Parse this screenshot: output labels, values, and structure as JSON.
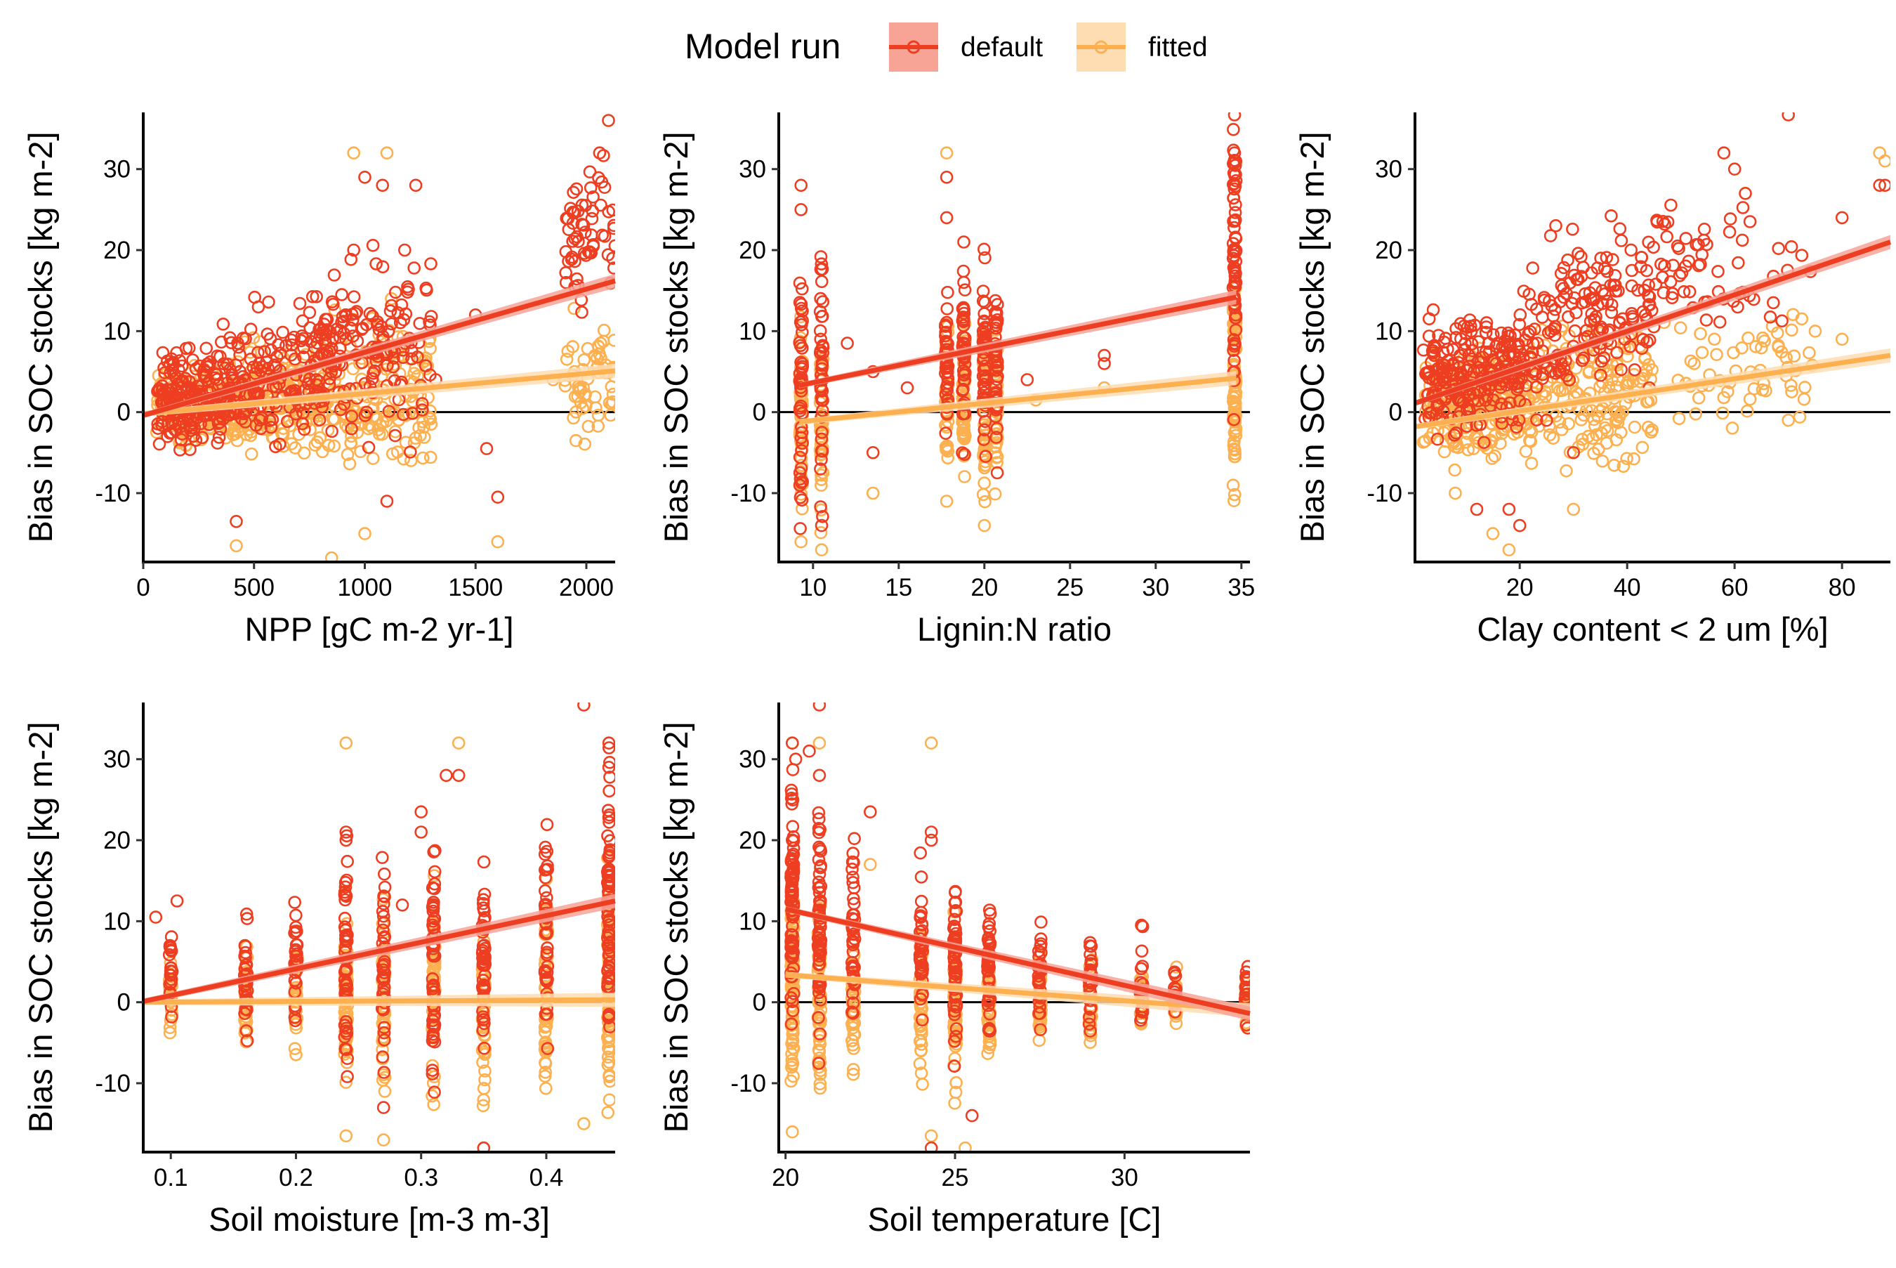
{
  "legend": {
    "title": "Model run",
    "entries": [
      {
        "label": "default",
        "color": "#EE3E22",
        "fill": "#F7A396"
      },
      {
        "label": "fitted",
        "color": "#FDB050",
        "fill": "#FEDDB3"
      }
    ]
  },
  "chart_data": [
    {
      "type": "scatter",
      "xlabel": "NPP [gC m-2 yr-1]",
      "ylabel": "Bias in SOC stocks [kg m-2]",
      "xlim": [
        0,
        2130
      ],
      "ylim": [
        -18.5,
        37
      ],
      "xticks": [
        0,
        500,
        1000,
        1500,
        2000
      ],
      "yticks": [
        -10,
        0,
        10,
        20,
        30
      ],
      "hline": 0,
      "series": [
        {
          "name": "default",
          "trend": [
            [
              0,
              -0.4
            ],
            [
              2130,
              16.2
            ]
          ],
          "clusters": [
            [
              60,
              450,
              0.8,
              4,
              2.8,
              220
            ],
            [
              450,
              850,
              3.5,
              6,
              4.0,
              160
            ],
            [
              850,
              1300,
              6.5,
              9.5,
              5.0,
              130
            ],
            [
              1900,
              2130,
              19,
              23,
              4.5,
              60
            ]
          ],
          "points": [
            [
              420,
              -13.5
            ],
            [
              950,
              20
            ],
            [
              1000,
              29
            ],
            [
              1080,
              28
            ],
            [
              1180,
              20
            ],
            [
              1230,
              28
            ],
            [
              1500,
              12
            ],
            [
              1550,
              -4.5
            ],
            [
              1600,
              -10.5
            ],
            [
              2100,
              36
            ],
            [
              2060,
              32
            ],
            [
              1100,
              -11
            ],
            [
              1320,
              4
            ]
          ]
        },
        {
          "name": "fitted",
          "trend": [
            [
              0,
              -0.2
            ],
            [
              2130,
              5.1
            ]
          ],
          "clusters": [
            [
              60,
              450,
              0.6,
              1.2,
              2.2,
              220
            ],
            [
              450,
              850,
              1.5,
              1.8,
              3.0,
              170
            ],
            [
              850,
              1300,
              1.9,
              2.1,
              4.5,
              150
            ],
            [
              1900,
              2130,
              4.0,
              5.0,
              3.5,
              60
            ]
          ],
          "points": [
            [
              420,
              -16.5
            ],
            [
              950,
              32
            ],
            [
              1100,
              32
            ],
            [
              850,
              -18
            ],
            [
              1000,
              -15
            ],
            [
              1600,
              -16
            ],
            [
              1120,
              14
            ],
            [
              1850,
              4
            ]
          ]
        }
      ]
    },
    {
      "type": "scatter",
      "xlabel": "Lignin:N ratio",
      "ylabel": "Bias in SOC stocks [kg m-2]",
      "xlim": [
        8,
        35.5
      ],
      "ylim": [
        -18.5,
        37
      ],
      "xticks": [
        10,
        15,
        20,
        25,
        30,
        35
      ],
      "yticks": [
        -10,
        0,
        10,
        20,
        30
      ],
      "hline": 0,
      "series": [
        {
          "name": "default",
          "trend": [
            [
              9.2,
              3.3
            ],
            [
              34.7,
              14.2
            ]
          ],
          "columns": [
            [
              9.3,
              2.5,
              7,
              45
            ],
            [
              10.5,
              3.0,
              7,
              40
            ],
            [
              17.8,
              6.0,
              5,
              40
            ],
            [
              18.8,
              7.0,
              5,
              40
            ],
            [
              20.0,
              6.5,
              5,
              45
            ],
            [
              20.7,
              6.0,
              5,
              40
            ],
            [
              34.6,
              17,
              8,
              70
            ]
          ],
          "points": [
            [
              9.3,
              28
            ],
            [
              9.3,
              25
            ],
            [
              10.5,
              -14
            ],
            [
              12,
              8.5
            ],
            [
              13.5,
              -5
            ],
            [
              13.5,
              5
            ],
            [
              15.5,
              3
            ],
            [
              17.8,
              29
            ],
            [
              17.8,
              24
            ],
            [
              18.8,
              21
            ],
            [
              22.5,
              4
            ],
            [
              27,
              7
            ],
            [
              27,
              6
            ],
            [
              34.6,
              37
            ],
            [
              34.6,
              32
            ]
          ]
        },
        {
          "name": "fitted",
          "trend": [
            [
              9.2,
              -1.2
            ],
            [
              34.7,
              4.2
            ]
          ],
          "columns": [
            [
              9.3,
              -1,
              6,
              45
            ],
            [
              10.5,
              -0.8,
              6,
              40
            ],
            [
              17.8,
              1,
              5,
              40
            ],
            [
              18.8,
              1.5,
              5,
              40
            ],
            [
              20.0,
              0.8,
              5,
              45
            ],
            [
              20.7,
              0.5,
              5,
              40
            ],
            [
              34.6,
              4,
              6,
              70
            ]
          ],
          "points": [
            [
              9.3,
              -16
            ],
            [
              10.5,
              -17
            ],
            [
              13.5,
              -10
            ],
            [
              17.8,
              32
            ],
            [
              17.8,
              -11
            ],
            [
              20,
              -14
            ],
            [
              23,
              1.5
            ],
            [
              27,
              3
            ],
            [
              34.6,
              -5.5
            ]
          ]
        }
      ]
    },
    {
      "type": "scatter",
      "xlabel": "Clay content < 2 um [%]",
      "ylabel": "Bias in SOC stocks [kg m-2]",
      "xlim": [
        0.5,
        89
      ],
      "ylim": [
        -18.5,
        37
      ],
      "xticks": [
        20,
        40,
        60,
        80
      ],
      "yticks": [
        -10,
        0,
        10,
        20,
        30
      ],
      "hline": 0,
      "series": [
        {
          "name": "default",
          "trend": [
            [
              0.5,
              1.1
            ],
            [
              89,
              21
            ]
          ],
          "clusters": [
            [
              2,
              20,
              4,
              5,
              3.2,
              230
            ],
            [
              20,
              45,
              8,
              13,
              4.5,
              150
            ],
            [
              25,
              55,
              16,
              22,
              3.5,
              50
            ],
            [
              45,
              75,
              15,
              19,
              3.5,
              40
            ]
          ],
          "points": [
            [
              58,
              32
            ],
            [
              60,
              30
            ],
            [
              62,
              27
            ],
            [
              70,
              37
            ],
            [
              80,
              24
            ],
            [
              87,
              28
            ],
            [
              88,
              28
            ],
            [
              12,
              -12
            ],
            [
              18,
              -12
            ],
            [
              20,
              -14
            ],
            [
              25,
              -1
            ],
            [
              30,
              -5
            ]
          ]
        },
        {
          "name": "fitted",
          "trend": [
            [
              0.5,
              -1.8
            ],
            [
              89,
              7
            ]
          ],
          "clusters": [
            [
              2,
              20,
              0.5,
              1.5,
              3.0,
              230
            ],
            [
              20,
              45,
              1.5,
              3.0,
              4.0,
              190
            ],
            [
              45,
              75,
              4,
              6,
              3.5,
              60
            ]
          ],
          "points": [
            [
              8,
              -10
            ],
            [
              15,
              -15
            ],
            [
              18,
              -17
            ],
            [
              30,
              -12
            ],
            [
              70,
              -1
            ],
            [
              87,
              32
            ],
            [
              88,
              31
            ],
            [
              75,
              10
            ],
            [
              80,
              9
            ]
          ]
        }
      ]
    },
    {
      "type": "scatter",
      "xlabel": "Soil moisture [m-3 m-3]",
      "ylabel": "Bias in SOC stocks [kg m-2]",
      "xlim": [
        0.078,
        0.455
      ],
      "ylim": [
        -18.5,
        37
      ],
      "xticks": [
        0.1,
        0.2,
        0.3,
        0.4
      ],
      "yticks": [
        -10,
        0,
        10,
        20,
        30
      ],
      "hline": 0,
      "series": [
        {
          "name": "default",
          "trend": [
            [
              0.078,
              0.1
            ],
            [
              0.455,
              12.5
            ]
          ],
          "columns": [
            [
              0.1,
              4,
              3,
              20
            ],
            [
              0.16,
              4,
              4,
              30
            ],
            [
              0.2,
              4.5,
              4,
              25
            ],
            [
              0.24,
              6,
              6,
              50
            ],
            [
              0.27,
              5,
              6,
              40
            ],
            [
              0.31,
              6,
              7,
              50
            ],
            [
              0.35,
              6,
              6,
              45
            ],
            [
              0.4,
              7,
              6,
              45
            ],
            [
              0.45,
              13,
              8,
              70
            ]
          ],
          "points": [
            [
              0.088,
              10.5
            ],
            [
              0.105,
              12.5
            ],
            [
              0.24,
              21
            ],
            [
              0.24,
              20
            ],
            [
              0.3,
              23.5
            ],
            [
              0.32,
              28
            ],
            [
              0.33,
              28
            ],
            [
              0.27,
              -13
            ],
            [
              0.35,
              -18
            ],
            [
              0.43,
              37
            ],
            [
              0.45,
              32
            ],
            [
              0.45,
              29
            ],
            [
              0.3,
              21
            ],
            [
              0.285,
              12
            ]
          ]
        },
        {
          "name": "fitted",
          "trend": [
            [
              0.078,
              0
            ],
            [
              0.455,
              0.3
            ]
          ],
          "columns": [
            [
              0.1,
              0.5,
              3,
              20
            ],
            [
              0.16,
              0.5,
              3.5,
              30
            ],
            [
              0.2,
              0.5,
              4,
              25
            ],
            [
              0.24,
              0.5,
              5.5,
              50
            ],
            [
              0.27,
              0,
              6,
              40
            ],
            [
              0.31,
              0,
              6,
              50
            ],
            [
              0.35,
              -1,
              5.5,
              45
            ],
            [
              0.4,
              0,
              6,
              45
            ],
            [
              0.45,
              2,
              7,
              70
            ]
          ],
          "points": [
            [
              0.24,
              32
            ],
            [
              0.33,
              32
            ],
            [
              0.27,
              -17
            ],
            [
              0.35,
              -18
            ],
            [
              0.43,
              -15
            ],
            [
              0.24,
              -16.5
            ]
          ]
        }
      ]
    },
    {
      "type": "scatter",
      "xlabel": "Soil temperature [C]",
      "ylabel": "Bias in SOC stocks [kg m-2]",
      "xlim": [
        19.8,
        33.7
      ],
      "ylim": [
        -18.5,
        37
      ],
      "xticks": [
        20,
        25,
        30
      ],
      "yticks": [
        -10,
        0,
        10,
        20,
        30
      ],
      "hline": 0,
      "series": [
        {
          "name": "default",
          "trend": [
            [
              20,
              11.5
            ],
            [
              33.7,
              -1.4
            ]
          ],
          "columns": [
            [
              20.2,
              12,
              7,
              80
            ],
            [
              21,
              10,
              7,
              60
            ],
            [
              22,
              8,
              5,
              40
            ],
            [
              24,
              7,
              5,
              40
            ],
            [
              25,
              6,
              5,
              55
            ],
            [
              26,
              4,
              4,
              40
            ],
            [
              27.5,
              3,
              3,
              30
            ],
            [
              29,
              2.5,
              3,
              25
            ],
            [
              30.5,
              2,
              3,
              20
            ],
            [
              31.5,
              1.5,
              2,
              15
            ],
            [
              33.6,
              1,
              2,
              20
            ]
          ],
          "points": [
            [
              20.2,
              32
            ],
            [
              20.3,
              30
            ],
            [
              21,
              37
            ],
            [
              22.5,
              23.5
            ],
            [
              24.3,
              21
            ],
            [
              24.3,
              20
            ],
            [
              25.5,
              -14
            ],
            [
              24.3,
              -18
            ],
            [
              30.5,
              9.5
            ],
            [
              21,
              28
            ],
            [
              20.7,
              31
            ]
          ]
        },
        {
          "name": "fitted",
          "trend": [
            [
              20,
              3.4
            ],
            [
              33.7,
              -1
            ]
          ],
          "columns": [
            [
              20.2,
              3,
              6,
              80
            ],
            [
              21,
              2.5,
              6,
              60
            ],
            [
              22,
              1,
              4,
              40
            ],
            [
              24,
              0,
              5,
              40
            ],
            [
              25,
              0,
              5,
              55
            ],
            [
              26,
              0.5,
              3.5,
              40
            ],
            [
              27.5,
              0.5,
              2.5,
              30
            ],
            [
              29,
              0.5,
              2.5,
              25
            ],
            [
              30.5,
              0.5,
              2,
              20
            ],
            [
              31.5,
              0.5,
              1.5,
              15
            ],
            [
              33.6,
              0,
              1.5,
              20
            ]
          ],
          "points": [
            [
              20.2,
              -16
            ],
            [
              20.2,
              32
            ],
            [
              21,
              32
            ],
            [
              24.3,
              32
            ],
            [
              24.3,
              -16.5
            ],
            [
              22.5,
              17
            ],
            [
              25.3,
              -18
            ]
          ]
        }
      ]
    }
  ]
}
